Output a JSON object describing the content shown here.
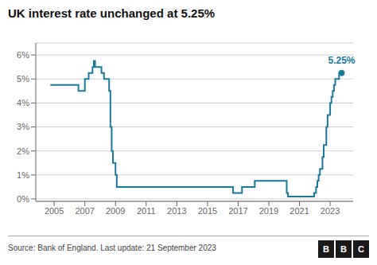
{
  "chart_data": {
    "type": "step",
    "title": "UK interest rate unchanged at 5.25%",
    "source": "Source: Bank of England. Last update: 21 September 2023",
    "logo": "BBC",
    "x": [
      2004.75,
      2006.5,
      2006.583,
      2006.75,
      2007.0,
      2007.25,
      2007.5,
      2007.583,
      2007.667,
      2008.0,
      2008.083,
      2008.25,
      2008.5,
      2008.583,
      2008.667,
      2008.75,
      2008.833,
      2009.0,
      2009.083,
      2016.0,
      2016.667,
      2017.083,
      2017.25,
      2017.917,
      2018.083,
      2018.583,
      2019.083,
      2020.167,
      2020.25,
      2021.917,
      2021.958,
      2022.083,
      2022.167,
      2022.25,
      2022.333,
      2022.5,
      2022.583,
      2022.75,
      2022.833,
      2023.0,
      2023.083,
      2023.167,
      2023.25,
      2023.333,
      2023.583,
      2023.75
    ],
    "values": [
      4.75,
      4.75,
      4.5,
      4.5,
      5.0,
      5.25,
      5.5,
      5.75,
      5.5,
      5.5,
      5.25,
      5.0,
      5.0,
      4.5,
      3.0,
      2.0,
      1.5,
      1.0,
      0.5,
      0.5,
      0.25,
      0.25,
      0.5,
      0.5,
      0.75,
      0.75,
      0.75,
      0.25,
      0.1,
      0.1,
      0.25,
      0.5,
      0.75,
      1.0,
      1.25,
      1.75,
      2.25,
      3.0,
      3.5,
      4.0,
      4.25,
      4.5,
      4.75,
      5.0,
      5.25,
      5.25
    ],
    "color": "#1a7a9a",
    "xlim": [
      2003.8,
      2024.5
    ],
    "xticks": [
      2005,
      2007,
      2009,
      2011,
      2013,
      2015,
      2017,
      2019,
      2021,
      2023
    ],
    "ylim": [
      -0.1,
      6.5
    ],
    "yticks": [
      {
        "value": 0,
        "label": "0%"
      },
      {
        "value": 1,
        "label": "1%"
      },
      {
        "value": 2,
        "label": "2%"
      },
      {
        "value": 3,
        "label": "3%"
      },
      {
        "value": 4,
        "label": "4%"
      },
      {
        "value": 5,
        "label": "5%"
      },
      {
        "value": 6,
        "label": "6%"
      }
    ],
    "grid": "y",
    "annotations": [
      {
        "x": 2023.75,
        "y": 5.25,
        "text": "5.25%",
        "color": "#1a7a9a"
      }
    ]
  }
}
